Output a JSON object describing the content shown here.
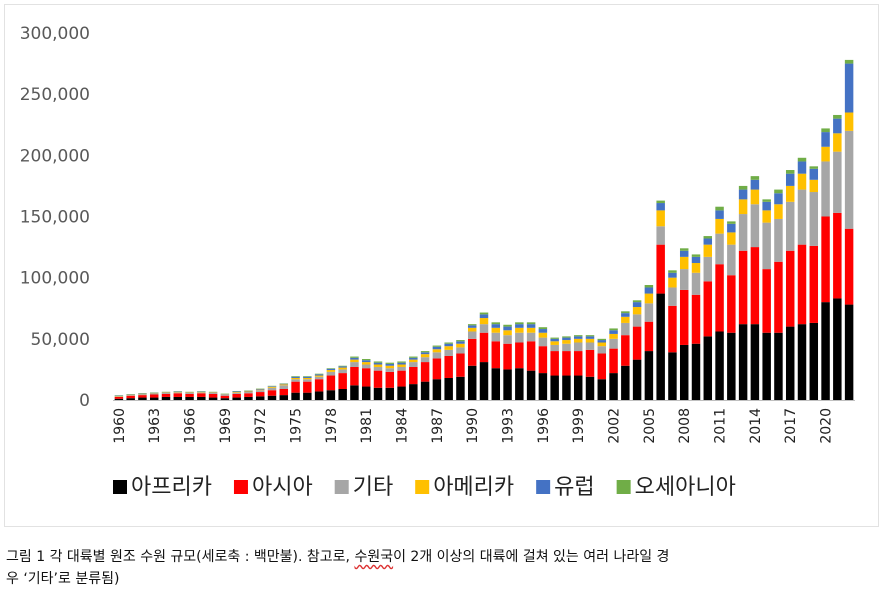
{
  "chart_data": {
    "type": "bar",
    "stacked": true,
    "ylim": [
      0,
      300000
    ],
    "yticks": [
      0,
      50000,
      100000,
      150000,
      200000,
      250000,
      300000
    ],
    "ytick_labels": [
      "0",
      "50,000",
      "100,000",
      "150,000",
      "200,000",
      "250,000",
      "300,000"
    ],
    "x": [
      1960,
      1961,
      1962,
      1963,
      1964,
      1965,
      1966,
      1967,
      1968,
      1969,
      1970,
      1971,
      1972,
      1973,
      1974,
      1975,
      1976,
      1977,
      1978,
      1979,
      1980,
      1981,
      1982,
      1983,
      1984,
      1985,
      1986,
      1987,
      1988,
      1989,
      1990,
      1991,
      1992,
      1993,
      1994,
      1995,
      1996,
      1997,
      1998,
      1999,
      2000,
      2001,
      2002,
      2003,
      2004,
      2005,
      2006,
      2007,
      2008,
      2009,
      2010,
      2011,
      2012,
      2013,
      2014,
      2015,
      2016,
      2017,
      2018,
      2019,
      2020,
      2021,
      2022
    ],
    "xtick_labels": [
      "1960",
      "1963",
      "1966",
      "1969",
      "1972",
      "1975",
      "1978",
      "1981",
      "1984",
      "1987",
      "1990",
      "1993",
      "1996",
      "1999",
      "2002",
      "2005",
      "2008",
      "2011",
      "2014",
      "2017",
      "2020"
    ],
    "grid": false,
    "legend_position": "bottom",
    "series": [
      {
        "name": "아프리카",
        "color": "#000000",
        "values": [
          1000,
          1500,
          2000,
          2000,
          2500,
          2500,
          2500,
          2500,
          2000,
          1500,
          2000,
          2500,
          3000,
          3500,
          4000,
          6000,
          6000,
          7000,
          8000,
          9000,
          12000,
          11000,
          10000,
          10000,
          11000,
          13000,
          15000,
          17000,
          18000,
          19000,
          28000,
          31000,
          26000,
          25000,
          26000,
          24000,
          22000,
          20000,
          20000,
          20000,
          19000,
          17000,
          22000,
          28000,
          33000,
          40000,
          87000,
          39000,
          45000,
          46000,
          52000,
          56000,
          55000,
          62000,
          62000,
          55000,
          55000,
          60000,
          62000,
          63000,
          80000,
          83000,
          78000
        ]
      },
      {
        "name": "아시아",
        "color": "#ff0000",
        "values": [
          1500,
          2000,
          2000,
          2500,
          2500,
          3000,
          2500,
          3000,
          3000,
          2000,
          3000,
          3000,
          3500,
          4500,
          5000,
          9000,
          9000,
          10000,
          12000,
          13000,
          15000,
          15000,
          14000,
          13000,
          13000,
          14000,
          16000,
          17000,
          18000,
          19000,
          22000,
          24000,
          22000,
          21000,
          21000,
          24000,
          22000,
          20000,
          20000,
          20000,
          22000,
          21000,
          20000,
          25000,
          27000,
          24000,
          40000,
          38000,
          45000,
          40000,
          45000,
          55000,
          47000,
          60000,
          63000,
          52000,
          58000,
          62000,
          65000,
          63000,
          70000,
          70000,
          62000
        ]
      },
      {
        "name": "기타",
        "color": "#a6a6a6",
        "values": [
          500,
          500,
          800,
          800,
          800,
          800,
          800,
          800,
          800,
          800,
          1000,
          1000,
          1500,
          2000,
          3000,
          2000,
          2000,
          2000,
          3000,
          3000,
          4000,
          3000,
          3000,
          3000,
          3000,
          4000,
          4000,
          5000,
          5000,
          5000,
          6000,
          7000,
          7000,
          7000,
          8000,
          7000,
          7000,
          5000,
          6000,
          7000,
          6000,
          6000,
          8000,
          10000,
          10000,
          15000,
          15000,
          15000,
          17000,
          18000,
          20000,
          25000,
          25000,
          30000,
          35000,
          38000,
          35000,
          40000,
          45000,
          44000,
          45000,
          50000,
          80000
        ]
      },
      {
        "name": "아메리카",
        "color": "#ffc000",
        "values": [
          300,
          300,
          300,
          300,
          300,
          300,
          300,
          300,
          300,
          300,
          500,
          500,
          500,
          800,
          800,
          1000,
          1000,
          1000,
          1500,
          1500,
          2000,
          2000,
          2000,
          2000,
          2000,
          2000,
          2500,
          2500,
          3000,
          3000,
          3000,
          5000,
          4000,
          4000,
          4000,
          4000,
          4000,
          3000,
          3000,
          3000,
          3000,
          3000,
          4000,
          5000,
          6000,
          8000,
          13000,
          8000,
          10000,
          8000,
          10000,
          12000,
          10000,
          12000,
          12000,
          10000,
          12000,
          13000,
          13000,
          10000,
          12000,
          15000,
          15000
        ]
      },
      {
        "name": "유럽",
        "color": "#4472c4",
        "values": [
          300,
          300,
          300,
          300,
          300,
          300,
          300,
          300,
          300,
          300,
          500,
          500,
          500,
          500,
          500,
          1000,
          1000,
          1000,
          1000,
          1000,
          1500,
          1500,
          1500,
          1500,
          1500,
          1500,
          1500,
          2000,
          2000,
          2000,
          2000,
          3000,
          3000,
          3000,
          3000,
          3000,
          3000,
          2000,
          2000,
          2000,
          2000,
          2000,
          3000,
          3000,
          4000,
          5000,
          6000,
          4000,
          5000,
          5000,
          5000,
          7000,
          7000,
          8000,
          8000,
          7000,
          9000,
          10000,
          10000,
          9000,
          12000,
          12000,
          40000
        ]
      },
      {
        "name": "오세아니아",
        "color": "#70ad47",
        "values": [
          300,
          300,
          300,
          300,
          300,
          300,
          300,
          300,
          300,
          300,
          300,
          300,
          300,
          300,
          300,
          500,
          500,
          500,
          500,
          500,
          1000,
          1000,
          1000,
          1000,
          1000,
          1000,
          1000,
          1000,
          1000,
          1000,
          1000,
          1500,
          1500,
          1500,
          1500,
          1500,
          1500,
          1000,
          1000,
          1000,
          1000,
          1000,
          1500,
          1500,
          1500,
          2000,
          2000,
          2000,
          2000,
          2000,
          2000,
          3000,
          2000,
          3000,
          3000,
          2000,
          3000,
          3000,
          3000,
          2000,
          3000,
          3000,
          3000
        ]
      }
    ]
  },
  "caption": {
    "line1_a": "그림 1 각 대륙별 원조 수원 규모(세로축 : 백만불). 참고로, ",
    "line1_b": "수원국",
    "line1_c": "이 2개 이상의 대륙에 걸쳐 있는 여러 나라일 경",
    "line2": "우 ‘기타’로 분류됨)"
  }
}
